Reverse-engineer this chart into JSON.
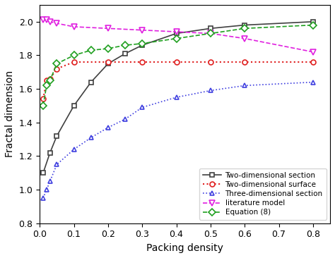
{
  "two_dim_section_x": [
    0.01,
    0.03,
    0.05,
    0.1,
    0.15,
    0.2,
    0.25,
    0.3,
    0.4,
    0.5,
    0.6,
    0.8
  ],
  "two_dim_section_y": [
    1.1,
    1.22,
    1.32,
    1.5,
    1.64,
    1.75,
    1.81,
    1.86,
    1.93,
    1.96,
    1.98,
    2.0
  ],
  "two_dim_surface_x": [
    0.01,
    0.02,
    0.03,
    0.05,
    0.1,
    0.2,
    0.3,
    0.4,
    0.5,
    0.6,
    0.8
  ],
  "two_dim_surface_y": [
    1.54,
    1.65,
    1.66,
    1.72,
    1.76,
    1.76,
    1.76,
    1.76,
    1.76,
    1.76,
    1.76
  ],
  "three_dim_section_x": [
    0.01,
    0.02,
    0.03,
    0.05,
    0.1,
    0.15,
    0.2,
    0.25,
    0.3,
    0.4,
    0.5,
    0.6,
    0.8
  ],
  "three_dim_section_y": [
    0.95,
    1.0,
    1.05,
    1.15,
    1.24,
    1.31,
    1.37,
    1.42,
    1.49,
    1.55,
    1.59,
    1.62,
    1.64
  ],
  "literature_model_x": [
    0.01,
    0.02,
    0.03,
    0.05,
    0.1,
    0.2,
    0.3,
    0.4,
    0.5,
    0.6,
    0.8
  ],
  "literature_model_y": [
    2.01,
    2.01,
    2.0,
    1.99,
    1.97,
    1.96,
    1.95,
    1.94,
    1.93,
    1.9,
    1.82
  ],
  "equation8_x": [
    0.01,
    0.02,
    0.03,
    0.05,
    0.1,
    0.15,
    0.2,
    0.25,
    0.3,
    0.4,
    0.5,
    0.6,
    0.8
  ],
  "equation8_y": [
    1.5,
    1.62,
    1.65,
    1.75,
    1.8,
    1.83,
    1.84,
    1.86,
    1.87,
    1.9,
    1.93,
    1.96,
    1.98
  ],
  "xlim": [
    0.0,
    0.85
  ],
  "ylim": [
    0.8,
    2.1
  ],
  "xlabel": "Packing density",
  "ylabel": "Fractal dimension",
  "legend_labels": [
    "Two-dimensional section",
    "Two-dimensional surface",
    "Three-dimensional section",
    "literature model",
    "Equation (8)"
  ],
  "color_2d_section": "#404040",
  "color_2d_surface": "#e02020",
  "color_3d_section": "#4040e0",
  "color_lit_model": "#e020e0",
  "color_eq8": "#20a020",
  "yticks": [
    0.8,
    1.0,
    1.2,
    1.4,
    1.6,
    1.8,
    2.0
  ],
  "xticks": [
    0.0,
    0.1,
    0.2,
    0.3,
    0.4,
    0.5,
    0.6,
    0.7,
    0.8
  ]
}
